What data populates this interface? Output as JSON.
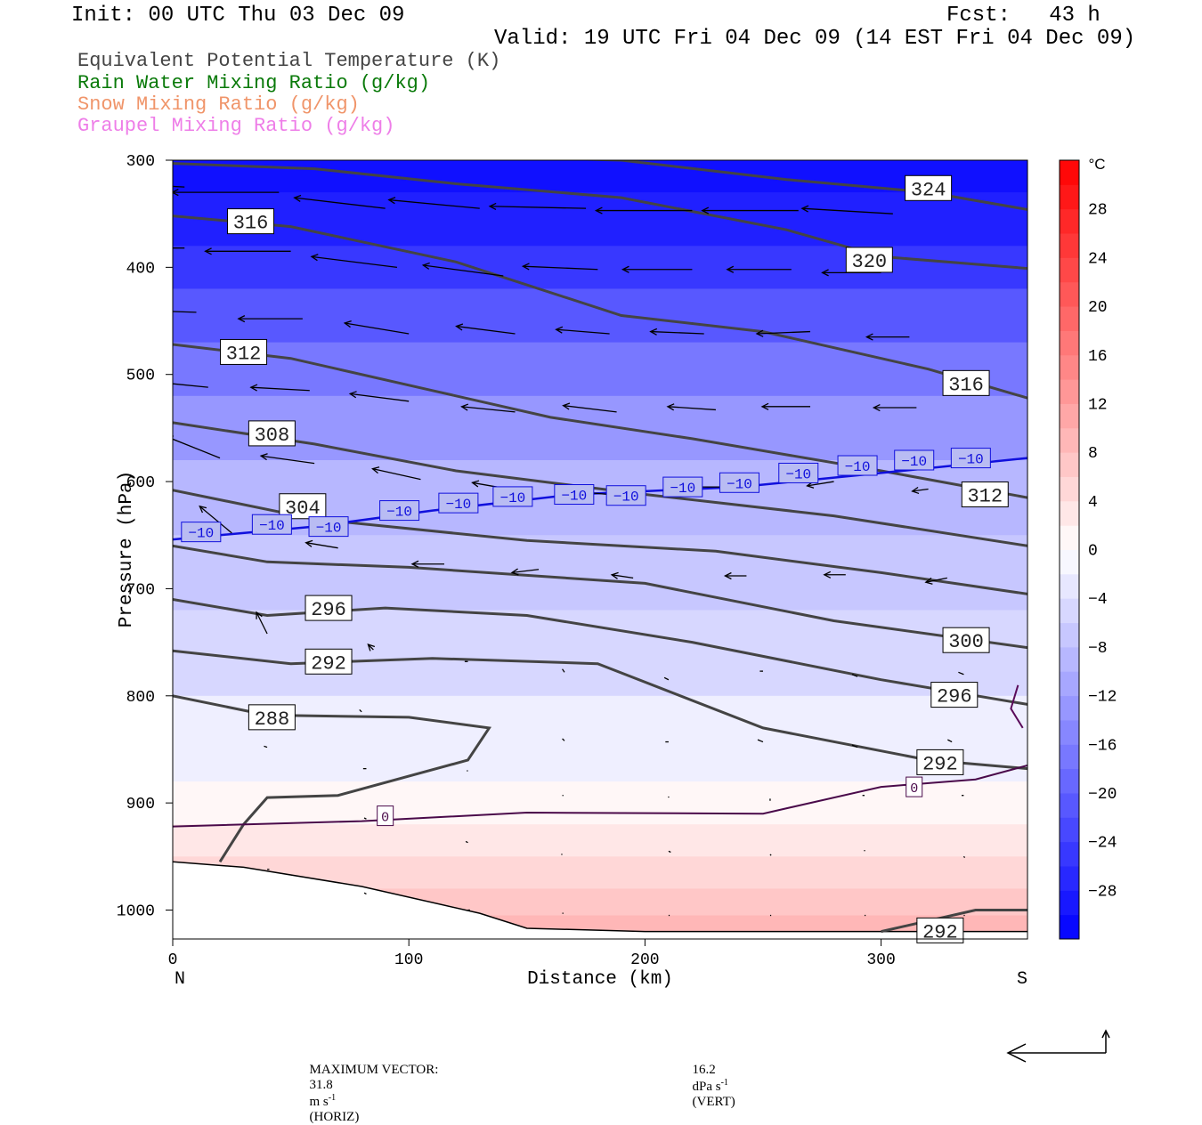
{
  "header": {
    "init": "Init: 00 UTC Thu 03 Dec 09",
    "fcst": "Fcst:   43 h",
    "valid": "Valid: 19 UTC Fri 04 Dec 09 (14 EST Fri 04 Dec 09)"
  },
  "fields": [
    {
      "label": "Equivalent Potential Temperature (K)",
      "color": "#444444"
    },
    {
      "label": "Rain Water Mixing Ratio (g/kg)",
      "color": "#0a7a0a"
    },
    {
      "label": "Snow Mixing Ratio (g/kg)",
      "color": "#f0956a"
    },
    {
      "label": "Graupel Mixing Ratio (g/kg)",
      "color": "#ee7ee8"
    }
  ],
  "footer": {
    "label": "MAXIMUM VECTOR:",
    "horiz_value": "31.8",
    "horiz_unit": "m s",
    "horiz_tag": "(HORIZ)",
    "vert_value": "16.2",
    "vert_unit": "dPa s",
    "vert_tag": "(VERT)",
    "exponent": "-1"
  },
  "chart_data": {
    "type": "cross-section",
    "xlabel": "Distance (km)",
    "ylabel": "Pressure (hPa)",
    "x_range": [
      0,
      362
    ],
    "y_range": [
      1027,
      300
    ],
    "x_ticks": [
      0,
      100,
      200,
      300
    ],
    "y_ticks": [
      300,
      400,
      500,
      600,
      700,
      800,
      900,
      1000
    ],
    "x_end_labels": {
      "left": "N",
      "right": "S"
    },
    "colorbar": {
      "unit": "°C",
      "range": [
        -32,
        32
      ],
      "tick_values": [
        28,
        24,
        20,
        16,
        12,
        8,
        4,
        0,
        -4,
        -8,
        -12,
        -16,
        -20,
        -24,
        -28
      ],
      "tick_labels": [
        "28",
        "24",
        "20",
        "16",
        "12",
        "8",
        "4",
        "0",
        "−4",
        "−8",
        "−12",
        "−16",
        "−20",
        "−24",
        "−28"
      ]
    },
    "theta_e_contours": [
      {
        "label": "324",
        "points": [
          [
            0,
            295
          ],
          [
            100,
            295
          ],
          [
            190,
            300
          ],
          [
            260,
            318
          ],
          [
            320,
            330
          ],
          [
            362,
            346
          ]
        ],
        "label_at": [
          320,
          326
        ]
      },
      {
        "label": "320",
        "points": [
          [
            0,
            303
          ],
          [
            60,
            308
          ],
          [
            120,
            322
          ],
          [
            190,
            335
          ],
          [
            260,
            365
          ],
          [
            300,
            390
          ],
          [
            362,
            401
          ]
        ],
        "label_at": [
          295,
          393
        ]
      },
      {
        "label": "316",
        "points": [
          [
            0,
            352
          ],
          [
            50,
            362
          ],
          [
            120,
            395
          ],
          [
            190,
            445
          ],
          [
            250,
            460
          ],
          [
            320,
            495
          ],
          [
            362,
            522
          ]
        ],
        "label_at": [
          33,
          357
        ]
      },
      {
        "label": "316",
        "points": [],
        "label_at": [
          336,
          508
        ]
      },
      {
        "label": "312",
        "points": [
          [
            0,
            472
          ],
          [
            50,
            485
          ],
          [
            110,
            515
          ],
          [
            160,
            540
          ],
          [
            220,
            560
          ],
          [
            300,
            590
          ],
          [
            362,
            615
          ]
        ],
        "label_at": [
          30,
          479
        ]
      },
      {
        "label": "312",
        "points": [],
        "label_at": [
          344,
          612
        ]
      },
      {
        "label": "308",
        "points": [
          [
            0,
            545
          ],
          [
            60,
            565
          ],
          [
            120,
            590
          ],
          [
            200,
            612
          ],
          [
            280,
            632
          ],
          [
            362,
            660
          ]
        ],
        "label_at": [
          42,
          555
        ]
      },
      {
        "label": "304",
        "points": [
          [
            0,
            608
          ],
          [
            60,
            635
          ],
          [
            150,
            655
          ],
          [
            230,
            665
          ],
          [
            300,
            685
          ],
          [
            362,
            705
          ]
        ],
        "label_at": [
          55,
          623
        ]
      },
      {
        "label": "300",
        "points": [
          [
            0,
            660
          ],
          [
            40,
            675
          ],
          [
            100,
            680
          ],
          [
            200,
            695
          ],
          [
            280,
            730
          ],
          [
            362,
            755
          ]
        ],
        "label_at": [
          336,
          748
        ]
      },
      {
        "label": "296",
        "points": [
          [
            0,
            710
          ],
          [
            40,
            725
          ],
          [
            90,
            718
          ],
          [
            150,
            725
          ],
          [
            220,
            750
          ],
          [
            300,
            785
          ],
          [
            362,
            808
          ]
        ],
        "label_at": [
          66,
          718
        ]
      },
      {
        "label": "296",
        "points": [],
        "label_at": [
          331,
          799
        ]
      },
      {
        "label": "292",
        "points": [
          [
            0,
            758
          ],
          [
            50,
            770
          ],
          [
            110,
            765
          ],
          [
            180,
            770
          ],
          [
            250,
            830
          ],
          [
            320,
            860
          ],
          [
            362,
            868
          ]
        ],
        "label_at": [
          66,
          768
        ]
      },
      {
        "label": "292",
        "points": [],
        "label_at": [
          325,
          862
        ]
      },
      {
        "label": "288",
        "points": [
          [
            0,
            800
          ],
          [
            40,
            818
          ],
          [
            100,
            820
          ],
          [
            134,
            830
          ],
          [
            125,
            860
          ],
          [
            70,
            893
          ],
          [
            40,
            895
          ],
          [
            30,
            920
          ],
          [
            20,
            955
          ]
        ],
        "label_at": [
          42,
          820
        ]
      },
      {
        "label": "292",
        "points": [
          [
            300,
            1020
          ],
          [
            340,
            1000
          ],
          [
            362,
            1000
          ]
        ],
        "label_at": [
          325,
          1019
        ]
      }
    ],
    "zero_line": {
      "label": "0",
      "points": [
        [
          0,
          922
        ],
        [
          80,
          917
        ],
        [
          150,
          909
        ],
        [
          250,
          910
        ],
        [
          300,
          885
        ],
        [
          340,
          878
        ],
        [
          362,
          865
        ]
      ],
      "labels_at": [
        [
          90,
          912
        ],
        [
          314,
          885
        ]
      ]
    },
    "minus10_line": {
      "label": "−10",
      "points": [
        [
          0,
          654
        ],
        [
          60,
          642
        ],
        [
          110,
          627
        ],
        [
          170,
          612
        ],
        [
          240,
          605
        ],
        [
          300,
          592
        ],
        [
          362,
          578
        ]
      ],
      "labels_at": [
        [
          12,
          647
        ],
        [
          42,
          640
        ],
        [
          66,
          642
        ],
        [
          96,
          627
        ],
        [
          121,
          620
        ],
        [
          144,
          614
        ],
        [
          170,
          612
        ],
        [
          192,
          613
        ],
        [
          216,
          605
        ],
        [
          240,
          601
        ],
        [
          265,
          592
        ],
        [
          290,
          585
        ],
        [
          314,
          580
        ],
        [
          338,
          578
        ]
      ]
    },
    "terrain": {
      "points": [
        [
          0,
          955
        ],
        [
          30,
          960
        ],
        [
          80,
          978
        ],
        [
          130,
          1003
        ],
        [
          150,
          1017
        ],
        [
          200,
          1020
        ],
        [
          260,
          1020
        ],
        [
          300,
          1020
        ],
        [
          362,
          1020
        ]
      ]
    },
    "temperature_bands_c": [
      {
        "bottom_pressure": 300,
        "value": -32
      },
      {
        "bottom_pressure": 330,
        "value": -30
      },
      {
        "bottom_pressure": 380,
        "value": -28
      },
      {
        "bottom_pressure": 420,
        "value": -25
      },
      {
        "bottom_pressure": 470,
        "value": -21
      },
      {
        "bottom_pressure": 520,
        "value": -17
      },
      {
        "bottom_pressure": 580,
        "value": -13
      },
      {
        "bottom_pressure": 650,
        "value": -9
      },
      {
        "bottom_pressure": 720,
        "value": -7
      },
      {
        "bottom_pressure": 800,
        "value": -5
      },
      {
        "bottom_pressure": 880,
        "value": -2
      },
      {
        "bottom_pressure": 920,
        "value": 1
      },
      {
        "bottom_pressure": 950,
        "value": 3
      },
      {
        "bottom_pressure": 980,
        "value": 5
      },
      {
        "bottom_pressure": 1005,
        "value": 7
      },
      {
        "bottom_pressure": 1027,
        "value": 9
      }
    ],
    "wind_vectors": [
      {
        "x": 5,
        "p": 325,
        "u": -1.0,
        "v": 0.05
      },
      {
        "x": 45,
        "p": 330,
        "u": -1.0,
        "v": 0.0
      },
      {
        "x": 90,
        "p": 345,
        "u": -0.85,
        "v": 0.1
      },
      {
        "x": 130,
        "p": 345,
        "u": -0.85,
        "v": 0.08
      },
      {
        "x": 175,
        "p": 345,
        "u": -0.9,
        "v": 0.02
      },
      {
        "x": 220,
        "p": 347,
        "u": -0.9,
        "v": 0.0
      },
      {
        "x": 265,
        "p": 347,
        "u": -0.9,
        "v": 0.0
      },
      {
        "x": 305,
        "p": 350,
        "u": -0.85,
        "v": 0.05
      },
      {
        "x": 5,
        "p": 382,
        "u": -0.9,
        "v": 0.0
      },
      {
        "x": 50,
        "p": 385,
        "u": -0.8,
        "v": 0.0
      },
      {
        "x": 95,
        "p": 400,
        "u": -0.8,
        "v": 0.1
      },
      {
        "x": 140,
        "p": 408,
        "u": -0.75,
        "v": 0.1
      },
      {
        "x": 180,
        "p": 402,
        "u": -0.7,
        "v": 0.03
      },
      {
        "x": 220,
        "p": 402,
        "u": -0.65,
        "v": 0.0
      },
      {
        "x": 262,
        "p": 402,
        "u": -0.6,
        "v": 0.0
      },
      {
        "x": 300,
        "p": 405,
        "u": -0.55,
        "v": 0.0
      },
      {
        "x": 10,
        "p": 442,
        "u": -0.6,
        "v": 0.02
      },
      {
        "x": 55,
        "p": 448,
        "u": -0.6,
        "v": 0.0
      },
      {
        "x": 100,
        "p": 462,
        "u": -0.6,
        "v": 0.1
      },
      {
        "x": 145,
        "p": 462,
        "u": -0.55,
        "v": 0.07
      },
      {
        "x": 185,
        "p": 462,
        "u": -0.5,
        "v": 0.04
      },
      {
        "x": 225,
        "p": 462,
        "u": -0.5,
        "v": 0.02
      },
      {
        "x": 270,
        "p": 460,
        "u": -0.5,
        "v": -0.02
      },
      {
        "x": 312,
        "p": 465,
        "u": -0.4,
        "v": 0.0
      },
      {
        "x": 15,
        "p": 512,
        "u": -0.6,
        "v": 0.06
      },
      {
        "x": 58,
        "p": 515,
        "u": -0.55,
        "v": 0.03
      },
      {
        "x": 100,
        "p": 525,
        "u": -0.55,
        "v": 0.07
      },
      {
        "x": 145,
        "p": 535,
        "u": -0.5,
        "v": 0.05
      },
      {
        "x": 188,
        "p": 535,
        "u": -0.5,
        "v": 0.06
      },
      {
        "x": 230,
        "p": 533,
        "u": -0.45,
        "v": 0.03
      },
      {
        "x": 270,
        "p": 530,
        "u": -0.45,
        "v": 0.0
      },
      {
        "x": 315,
        "p": 531,
        "u": -0.4,
        "v": 0.0
      },
      {
        "x": 20,
        "p": 578,
        "u": -0.5,
        "v": 0.2
      },
      {
        "x": 60,
        "p": 583,
        "u": -0.5,
        "v": 0.07
      },
      {
        "x": 105,
        "p": 598,
        "u": -0.45,
        "v": 0.1
      },
      {
        "x": 145,
        "p": 608,
        "u": -0.4,
        "v": 0.07
      },
      {
        "x": 190,
        "p": 613,
        "u": -0.35,
        "v": 0.03
      },
      {
        "x": 235,
        "p": 605,
        "u": -0.3,
        "v": 0.0
      },
      {
        "x": 280,
        "p": 600,
        "u": -0.25,
        "v": -0.04
      },
      {
        "x": 320,
        "p": 607,
        "u": -0.15,
        "v": -0.02
      },
      {
        "x": 25,
        "p": 648,
        "u": -0.3,
        "v": 0.25
      },
      {
        "x": 70,
        "p": 662,
        "u": -0.3,
        "v": 0.05
      },
      {
        "x": 115,
        "p": 677,
        "u": -0.3,
        "v": 0.0
      },
      {
        "x": 155,
        "p": 682,
        "u": -0.25,
        "v": -0.03
      },
      {
        "x": 195,
        "p": 690,
        "u": -0.2,
        "v": 0.03
      },
      {
        "x": 243,
        "p": 688,
        "u": -0.2,
        "v": 0.0
      },
      {
        "x": 285,
        "p": 687,
        "u": -0.2,
        "v": 0.0
      },
      {
        "x": 328,
        "p": 690,
        "u": -0.2,
        "v": -0.04
      },
      {
        "x": 40,
        "p": 742,
        "u": -0.1,
        "v": 0.2
      },
      {
        "x": 85,
        "p": 757,
        "u": -0.05,
        "v": 0.05
      },
      {
        "x": 125,
        "p": 768,
        "u": -0.03,
        "v": 0.0
      },
      {
        "x": 165,
        "p": 775,
        "u": 0.02,
        "v": -0.03
      },
      {
        "x": 210,
        "p": 785,
        "u": -0.04,
        "v": 0.02
      },
      {
        "x": 250,
        "p": 777,
        "u": -0.03,
        "v": 0.0
      },
      {
        "x": 290,
        "p": 782,
        "u": -0.05,
        "v": 0.02
      },
      {
        "x": 335,
        "p": 780,
        "u": -0.05,
        "v": 0.02
      },
      {
        "x": 80,
        "p": 815,
        "u": -0.02,
        "v": 0.02
      },
      {
        "x": 40,
        "p": 848,
        "u": -0.03,
        "v": 0.01
      },
      {
        "x": 165,
        "p": 840,
        "u": 0.02,
        "v": -0.02
      },
      {
        "x": 210,
        "p": 843,
        "u": -0.03,
        "v": 0.0
      },
      {
        "x": 250,
        "p": 843,
        "u": -0.05,
        "v": 0.02
      },
      {
        "x": 290,
        "p": 848,
        "u": -0.05,
        "v": 0.02
      },
      {
        "x": 330,
        "p": 843,
        "u": -0.04,
        "v": 0.02
      },
      {
        "x": 82,
        "p": 868,
        "u": -0.03,
        "v": 0.0
      },
      {
        "x": 125,
        "p": 870,
        "u": -0.01,
        "v": 0.0
      },
      {
        "x": 165,
        "p": 893,
        "u": 0.01,
        "v": 0.0
      },
      {
        "x": 210,
        "p": 895,
        "u": 0.0,
        "v": 0.01
      },
      {
        "x": 253,
        "p": 898,
        "u": 0.0,
        "v": 0.02
      },
      {
        "x": 293,
        "p": 893,
        "u": -0.02,
        "v": 0.0
      },
      {
        "x": 335,
        "p": 893,
        "u": -0.02,
        "v": 0.0
      },
      {
        "x": 82,
        "p": 915,
        "u": -0.02,
        "v": 0.01
      },
      {
        "x": 125,
        "p": 937,
        "u": -0.02,
        "v": 0.01
      },
      {
        "x": 165,
        "p": 948,
        "u": -0.01,
        "v": 0.0
      },
      {
        "x": 210,
        "p": 945,
        "u": 0.02,
        "v": -0.01
      },
      {
        "x": 253,
        "p": 948,
        "u": 0.01,
        "v": -0.01
      },
      {
        "x": 293,
        "p": 945,
        "u": 0.0,
        "v": 0.01
      },
      {
        "x": 335,
        "p": 950,
        "u": 0.01,
        "v": -0.01
      },
      {
        "x": 40,
        "p": 962,
        "u": 0.02,
        "v": 0.0
      },
      {
        "x": 82,
        "p": 985,
        "u": -0.02,
        "v": 0.01
      },
      {
        "x": 125,
        "p": 1000,
        "u": 0.02,
        "v": 0.0
      },
      {
        "x": 165,
        "p": 1003,
        "u": 0.01,
        "v": 0.0
      },
      {
        "x": 210,
        "p": 1005,
        "u": 0.01,
        "v": 0.0
      },
      {
        "x": 253,
        "p": 1005,
        "u": 0.01,
        "v": 0.0
      },
      {
        "x": 293,
        "p": 1005,
        "u": 0.01,
        "v": 0.0
      },
      {
        "x": 335,
        "p": 1005,
        "u": 0.01,
        "v": 0.0
      }
    ],
    "graupel_contour": {
      "points": [
        [
          358,
          790
        ],
        [
          355,
          812
        ],
        [
          360,
          830
        ]
      ]
    }
  }
}
